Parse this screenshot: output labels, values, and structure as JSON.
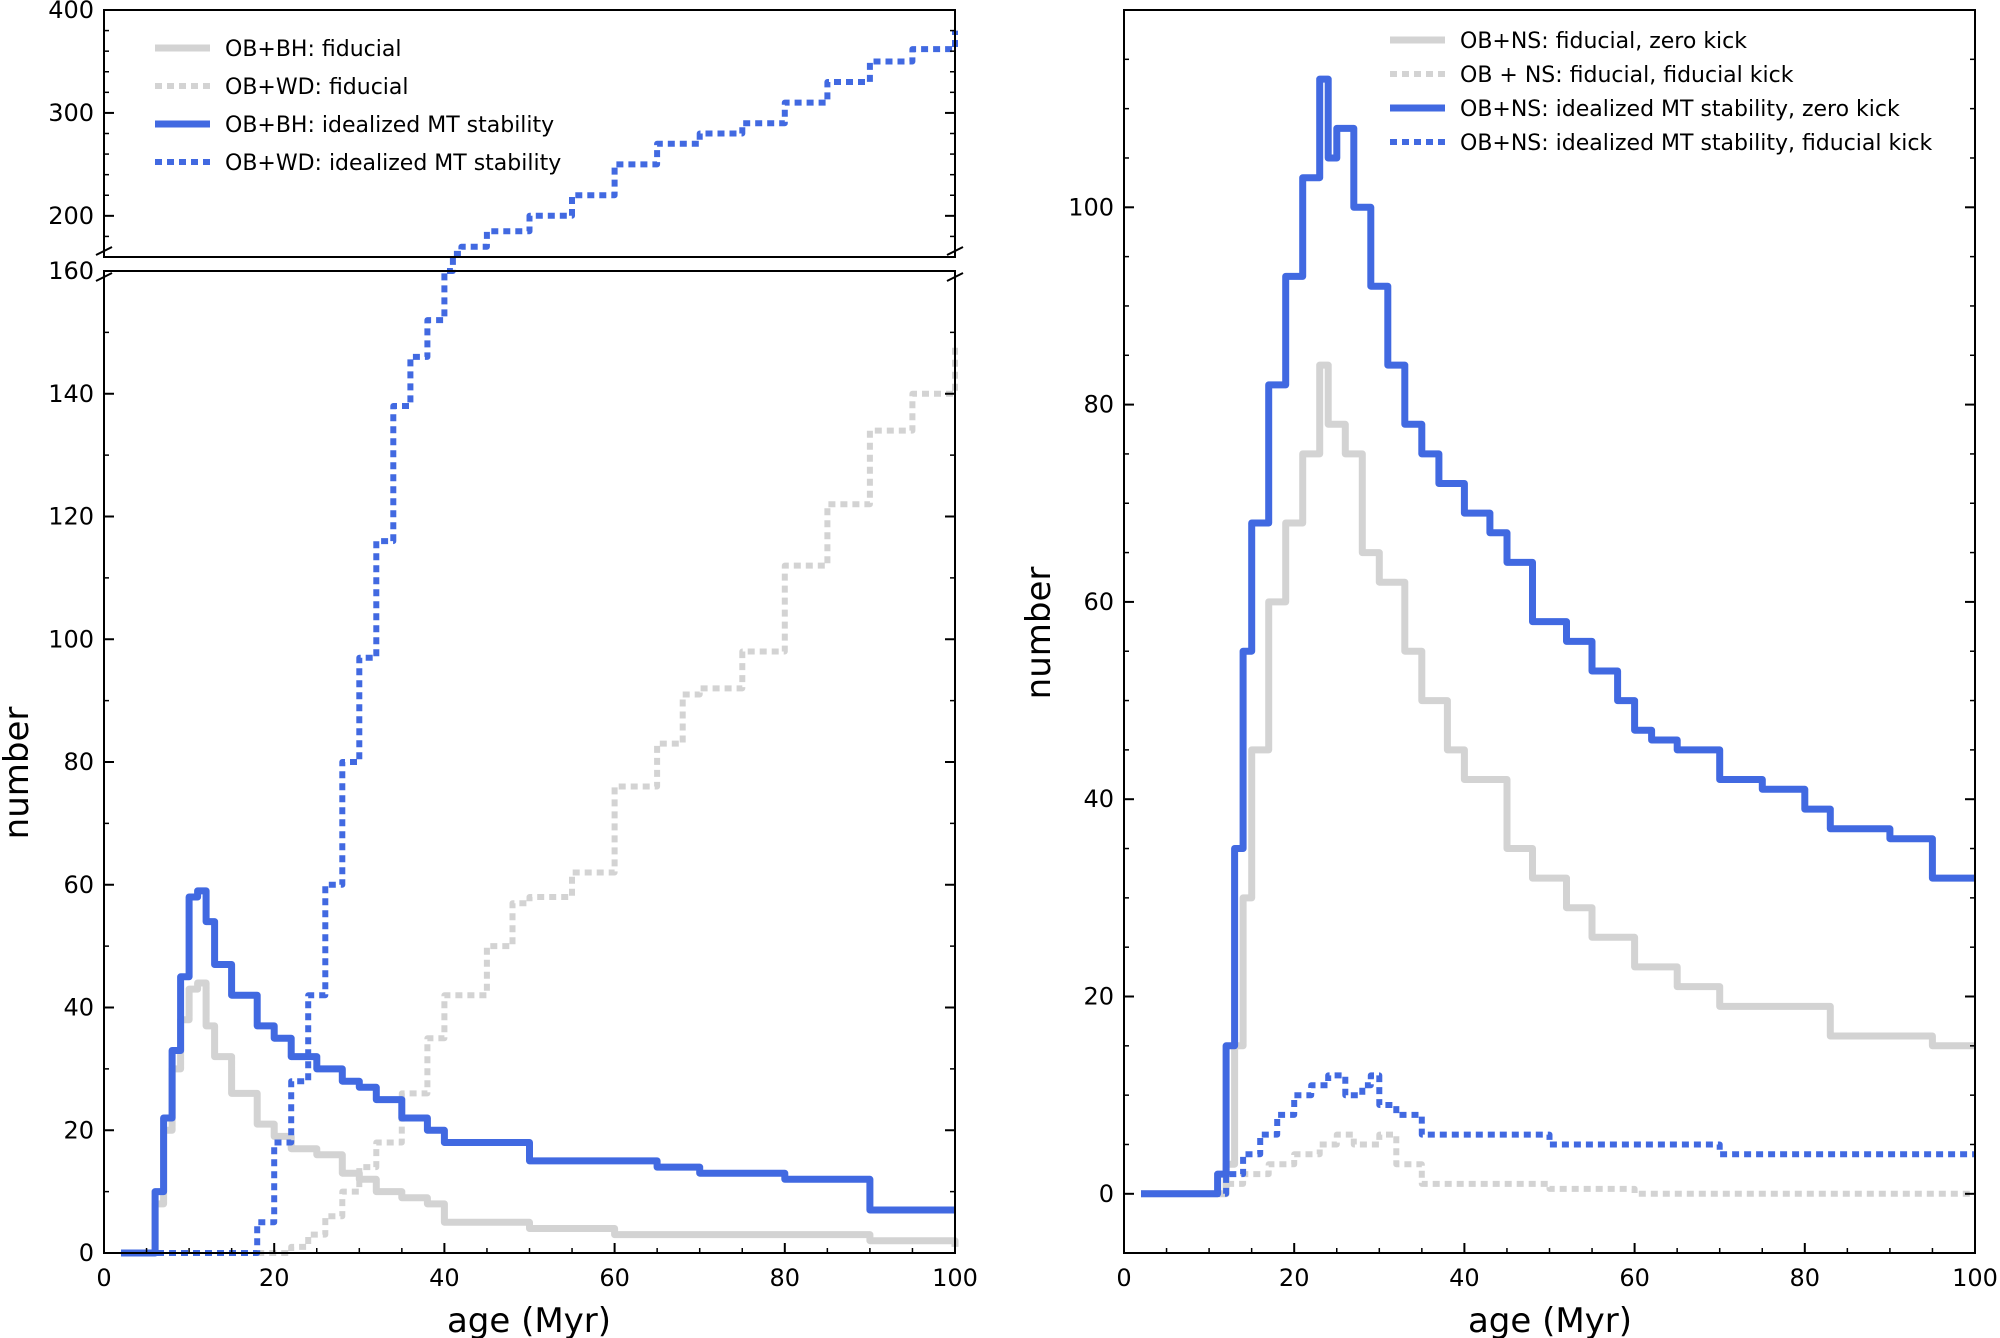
{
  "colors": {
    "blue": "#4169e1",
    "gray": "#d3d3d3"
  },
  "chart_data": [
    {
      "type": "line",
      "name": "left-panel",
      "xlabel": "age (Myr)",
      "ylabel": "number",
      "xlim": [
        0,
        100
      ],
      "ylim_lower": [
        0,
        160
      ],
      "ylim_upper": [
        160,
        400
      ],
      "broken_y_axis": true,
      "x_ticks": [
        "0",
        "20",
        "40",
        "60",
        "80",
        "100"
      ],
      "y_ticks_lower": [
        "0",
        "20",
        "40",
        "60",
        "80",
        "100",
        "120",
        "140",
        "160"
      ],
      "y_ticks_upper": [
        "200",
        "300",
        "400"
      ],
      "legend_position": "top-left",
      "series": [
        {
          "name": "OB+BH: fiducial",
          "color": "gray",
          "style": "solid",
          "x": [
            2,
            5,
            6,
            7,
            8,
            9,
            10,
            11,
            12,
            13,
            15,
            18,
            20,
            22,
            25,
            28,
            30,
            32,
            35,
            38,
            40,
            45,
            50,
            60,
            70,
            80,
            90,
            100
          ],
          "y": [
            0,
            0,
            8,
            20,
            30,
            38,
            43,
            44,
            37,
            32,
            26,
            21,
            19,
            17,
            16,
            13,
            12,
            10,
            9,
            8,
            5,
            5,
            4,
            3,
            3,
            3,
            2,
            1
          ]
        },
        {
          "name": "OB+WD: fiducial",
          "color": "gray",
          "style": "dotted",
          "x": [
            18,
            20,
            22,
            24,
            26,
            28,
            30,
            32,
            35,
            38,
            40,
            45,
            48,
            50,
            55,
            60,
            65,
            68,
            70,
            75,
            80,
            85,
            90,
            95,
            100
          ],
          "y": [
            0,
            0,
            1,
            3,
            6,
            10,
            14,
            18,
            26,
            35,
            42,
            50,
            57,
            58,
            62,
            76,
            83,
            91,
            92,
            98,
            112,
            122,
            134,
            140,
            148
          ]
        },
        {
          "name": "OB+BH: idealized MT stability",
          "color": "blue",
          "style": "solid",
          "x": [
            2,
            5,
            6,
            7,
            8,
            9,
            10,
            11,
            12,
            13,
            15,
            18,
            20,
            22,
            25,
            28,
            30,
            32,
            35,
            38,
            40,
            45,
            50,
            60,
            65,
            70,
            80,
            90,
            100
          ],
          "y": [
            0,
            0,
            10,
            22,
            33,
            45,
            58,
            59,
            54,
            47,
            42,
            37,
            35,
            32,
            30,
            28,
            27,
            25,
            22,
            20,
            18,
            18,
            15,
            15,
            14,
            13,
            12,
            7,
            7
          ]
        },
        {
          "name": "OB+WD: idealized MT stability",
          "color": "blue",
          "style": "dotted",
          "x": [
            2,
            10,
            17,
            18,
            20,
            22,
            24,
            26,
            28,
            30,
            32,
            34,
            36,
            38,
            40,
            41,
            42,
            45,
            50,
            55,
            60,
            65,
            70,
            75,
            80,
            85,
            90,
            95,
            100
          ],
          "y": [
            0,
            0,
            0,
            5,
            18,
            28,
            42,
            60,
            80,
            97,
            116,
            138,
            146,
            152,
            160,
            163,
            170,
            185,
            200,
            220,
            250,
            270,
            280,
            290,
            310,
            330,
            350,
            362,
            380
          ]
        }
      ]
    },
    {
      "type": "line",
      "name": "right-panel",
      "xlabel": "age (Myr)",
      "ylabel": "number",
      "xlim": [
        0,
        100
      ],
      "ylim": [
        -6,
        120
      ],
      "x_ticks": [
        "0",
        "20",
        "40",
        "60",
        "80",
        "100"
      ],
      "y_ticks": [
        "0",
        "20",
        "40",
        "60",
        "80",
        "100"
      ],
      "legend_position": "top-right",
      "series": [
        {
          "name": "OB+NS: fiducial, zero kick",
          "color": "gray",
          "style": "solid",
          "x": [
            2,
            10,
            12,
            13,
            14,
            15,
            17,
            19,
            21,
            23,
            24,
            26,
            28,
            30,
            33,
            35,
            38,
            40,
            45,
            48,
            52,
            55,
            60,
            65,
            70,
            80,
            83,
            95,
            100
          ],
          "y": [
            0,
            0,
            3,
            15,
            30,
            45,
            60,
            68,
            75,
            84,
            78,
            75,
            65,
            62,
            55,
            50,
            45,
            42,
            35,
            32,
            29,
            26,
            23,
            21,
            19,
            19,
            16,
            15,
            15
          ]
        },
        {
          "name": "OB + NS: fiducial, fiducial kick",
          "color": "gray",
          "style": "dotted",
          "x": [
            2,
            10,
            12,
            14,
            17,
            20,
            23,
            25,
            27,
            30,
            32,
            35,
            40,
            50,
            60,
            80,
            100
          ],
          "y": [
            0,
            0,
            1,
            2,
            3,
            4,
            5,
            6,
            5,
            6,
            3,
            1,
            1,
            0.5,
            0,
            0,
            0
          ]
        },
        {
          "name": "OB+NS: idealized MT stability, zero kick",
          "color": "blue",
          "style": "solid",
          "x": [
            2,
            10,
            11,
            12,
            13,
            14,
            15,
            17,
            19,
            21,
            23,
            24,
            25,
            27,
            29,
            31,
            33,
            35,
            37,
            40,
            43,
            45,
            48,
            52,
            55,
            58,
            60,
            62,
            65,
            70,
            75,
            80,
            83,
            90,
            93,
            95,
            100
          ],
          "y": [
            0,
            0,
            2,
            15,
            35,
            55,
            68,
            82,
            93,
            103,
            113,
            105,
            108,
            100,
            92,
            84,
            78,
            75,
            72,
            69,
            67,
            64,
            58,
            56,
            53,
            50,
            47,
            46,
            45,
            42,
            41,
            39,
            37,
            36,
            36,
            32,
            32
          ]
        },
        {
          "name": "OB+NS: idealized MT stability, fiducial kick",
          "color": "blue",
          "style": "dotted",
          "x": [
            2,
            10,
            12,
            14,
            16,
            18,
            20,
            22,
            24,
            26,
            28,
            29,
            30,
            32,
            35,
            40,
            50,
            60,
            70,
            80,
            90,
            100
          ],
          "y": [
            0,
            0,
            2,
            4,
            6,
            8,
            10,
            11,
            12,
            10,
            11,
            12,
            9,
            8,
            6,
            6,
            5,
            5,
            4,
            4,
            4,
            4
          ]
        }
      ]
    }
  ]
}
